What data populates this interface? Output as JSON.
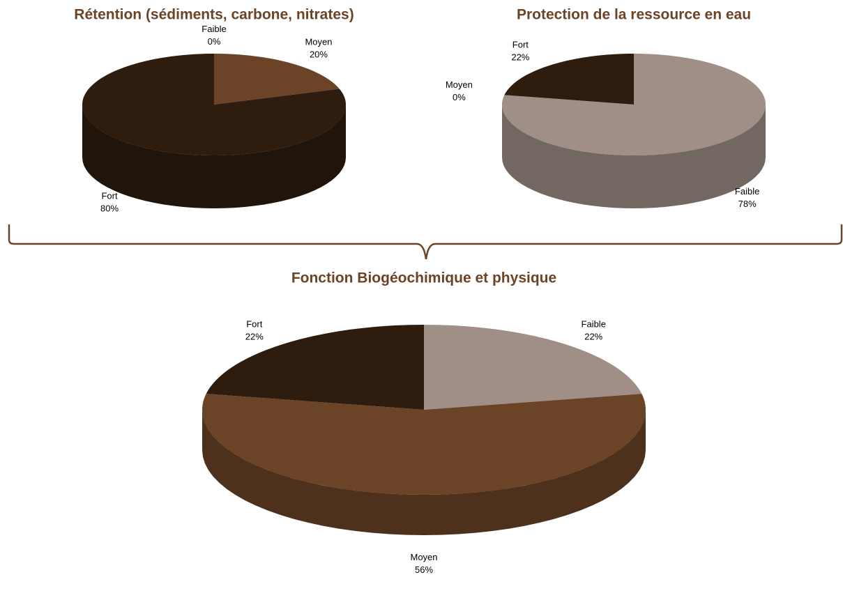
{
  "chart_data": [
    {
      "type": "pie",
      "title": "Rétention (sédiments, carbone, nitrates)",
      "categories": [
        "Faible",
        "Moyen",
        "Fort"
      ],
      "values": [
        0,
        20,
        80
      ],
      "value_labels": [
        "0%",
        "20%",
        "80%"
      ],
      "colors": [
        "#a08f87",
        "#6b4428",
        "#2e1c0e"
      ]
    },
    {
      "type": "pie",
      "title": "Protection de la ressource en eau",
      "categories": [
        "Faible",
        "Moyen",
        "Fort"
      ],
      "values": [
        78,
        0,
        22
      ],
      "value_labels": [
        "78%",
        "0%",
        "22%"
      ],
      "colors": [
        "#a08f87",
        "#6b4428",
        "#2e1c0e"
      ]
    },
    {
      "type": "pie",
      "title": "Fonction Biogéochimique et physique",
      "categories": [
        "Faible",
        "Moyen",
        "Fort"
      ],
      "values": [
        22,
        56,
        22
      ],
      "value_labels": [
        "22%",
        "56%",
        "22%"
      ],
      "colors": [
        "#a08f87",
        "#6b4428",
        "#2e1c0e"
      ]
    }
  ]
}
